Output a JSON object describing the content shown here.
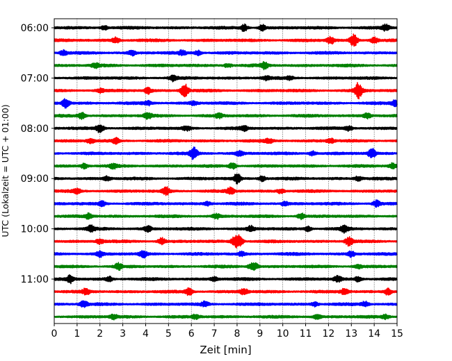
{
  "chart_data": {
    "type": "line",
    "subtype": "seismogram-helicorder",
    "xlabel": "Zeit  [min]",
    "ylabel": "UTC (Lokalzeit = UTC + 01:00)",
    "xlim": [
      0,
      15
    ],
    "x_ticks": [
      "0",
      "1",
      "2",
      "3",
      "4",
      "5",
      "6",
      "7",
      "8",
      "9",
      "10",
      "11",
      "12",
      "13",
      "14",
      "15"
    ],
    "y_tick_labels": [
      "06:00",
      "07:00",
      "08:00",
      "09:00",
      "10:00",
      "11:00"
    ],
    "vertical_grid": "dotted",
    "trace_colors": [
      "#000000",
      "#ff0000",
      "#0000ff",
      "#008000"
    ],
    "traces": [
      {
        "start": "06:00",
        "color": "#000000",
        "events": [
          [
            2.2,
            0.35
          ],
          [
            8.3,
            0.55
          ],
          [
            9.1,
            0.5
          ],
          [
            14.5,
            0.5
          ]
        ]
      },
      {
        "start": "06:15",
        "color": "#ff0000",
        "events": [
          [
            2.7,
            0.5
          ],
          [
            12.1,
            0.6
          ],
          [
            13.1,
            1.1
          ],
          [
            14.0,
            0.5
          ]
        ]
      },
      {
        "start": "06:30",
        "color": "#0000ff",
        "events": [
          [
            0.4,
            0.4
          ],
          [
            3.4,
            0.4
          ],
          [
            5.6,
            0.4
          ],
          [
            6.3,
            0.4
          ]
        ]
      },
      {
        "start": "06:45",
        "color": "#008000",
        "events": [
          [
            1.8,
            0.35
          ],
          [
            7.6,
            0.35
          ],
          [
            9.2,
            0.55
          ]
        ]
      },
      {
        "start": "07:00",
        "color": "#000000",
        "events": [
          [
            5.2,
            0.55
          ],
          [
            9.3,
            0.35
          ],
          [
            10.3,
            0.3
          ]
        ]
      },
      {
        "start": "07:15",
        "color": "#ff0000",
        "events": [
          [
            4.1,
            0.5
          ],
          [
            5.7,
            1.2
          ],
          [
            13.3,
            1.3
          ],
          [
            2.0,
            0.3
          ]
        ]
      },
      {
        "start": "07:30",
        "color": "#0000ff",
        "events": [
          [
            0.5,
            0.75
          ],
          [
            4.1,
            0.35
          ],
          [
            6.1,
            0.3
          ],
          [
            14.9,
            0.45
          ]
        ]
      },
      {
        "start": "07:45",
        "color": "#008000",
        "events": [
          [
            1.2,
            0.55
          ],
          [
            4.1,
            0.5
          ],
          [
            7.2,
            0.35
          ],
          [
            13.7,
            0.45
          ]
        ]
      },
      {
        "start": "08:00",
        "color": "#000000",
        "events": [
          [
            2.0,
            0.75
          ],
          [
            5.8,
            0.35
          ],
          [
            8.3,
            0.35
          ],
          [
            12.9,
            0.4
          ]
        ]
      },
      {
        "start": "08:15",
        "color": "#ff0000",
        "events": [
          [
            1.6,
            0.4
          ],
          [
            2.7,
            0.45
          ],
          [
            9.4,
            0.35
          ],
          [
            12.1,
            0.35
          ]
        ]
      },
      {
        "start": "08:30",
        "color": "#0000ff",
        "events": [
          [
            6.1,
            0.95
          ],
          [
            8.1,
            0.45
          ],
          [
            11.3,
            0.4
          ],
          [
            13.9,
            0.85
          ]
        ]
      },
      {
        "start": "08:45",
        "color": "#008000",
        "events": [
          [
            1.3,
            0.45
          ],
          [
            2.6,
            0.4
          ],
          [
            7.8,
            0.5
          ],
          [
            14.8,
            0.45
          ]
        ]
      },
      {
        "start": "09:00",
        "color": "#000000",
        "events": [
          [
            2.3,
            0.35
          ],
          [
            8.0,
            0.75
          ],
          [
            9.1,
            0.45
          ],
          [
            13.3,
            0.35
          ]
        ]
      },
      {
        "start": "09:15",
        "color": "#ff0000",
        "events": [
          [
            1.0,
            0.4
          ],
          [
            4.9,
            0.65
          ],
          [
            7.7,
            0.55
          ],
          [
            9.9,
            0.35
          ]
        ]
      },
      {
        "start": "09:30",
        "color": "#0000ff",
        "events": [
          [
            2.1,
            0.4
          ],
          [
            6.7,
            0.35
          ],
          [
            10.1,
            0.35
          ],
          [
            14.1,
            0.5
          ]
        ]
      },
      {
        "start": "09:45",
        "color": "#008000",
        "events": [
          [
            1.5,
            0.45
          ],
          [
            7.1,
            0.4
          ],
          [
            10.8,
            0.5
          ]
        ]
      },
      {
        "start": "10:00",
        "color": "#000000",
        "events": [
          [
            1.6,
            0.5
          ],
          [
            4.1,
            0.5
          ],
          [
            8.6,
            0.45
          ],
          [
            11.1,
            0.4
          ],
          [
            12.7,
            0.55
          ]
        ]
      },
      {
        "start": "10:15",
        "color": "#ff0000",
        "events": [
          [
            2.0,
            0.45
          ],
          [
            4.7,
            0.55
          ],
          [
            7.9,
            0.8
          ],
          [
            8.1,
            0.9
          ],
          [
            12.9,
            0.75
          ]
        ]
      },
      {
        "start": "10:30",
        "color": "#0000ff",
        "events": [
          [
            2.0,
            0.45
          ],
          [
            3.9,
            0.55
          ],
          [
            8.2,
            0.35
          ],
          [
            13.0,
            0.45
          ]
        ]
      },
      {
        "start": "10:45",
        "color": "#008000",
        "events": [
          [
            2.8,
            0.55
          ],
          [
            8.6,
            0.4
          ],
          [
            8.8,
            0.45
          ],
          [
            13.3,
            0.35
          ]
        ]
      },
      {
        "start": "11:00",
        "color": "#000000",
        "events": [
          [
            0.7,
            0.65
          ],
          [
            2.4,
            0.4
          ],
          [
            7.0,
            0.35
          ],
          [
            12.4,
            0.45
          ],
          [
            13.3,
            0.4
          ]
        ]
      },
      {
        "start": "11:15",
        "color": "#ff0000",
        "events": [
          [
            1.4,
            0.5
          ],
          [
            5.9,
            0.6
          ],
          [
            8.3,
            0.5
          ],
          [
            12.7,
            0.5
          ],
          [
            14.6,
            0.55
          ]
        ]
      },
      {
        "start": "11:30",
        "color": "#0000ff",
        "events": [
          [
            1.3,
            0.6
          ],
          [
            6.6,
            0.4
          ],
          [
            11.4,
            0.35
          ],
          [
            13.6,
            0.45
          ]
        ]
      },
      {
        "start": "11:45",
        "color": "#008000",
        "events": [
          [
            2.6,
            0.35
          ],
          [
            6.2,
            0.35
          ],
          [
            11.5,
            0.35
          ],
          [
            14.5,
            0.35
          ]
        ]
      }
    ]
  }
}
